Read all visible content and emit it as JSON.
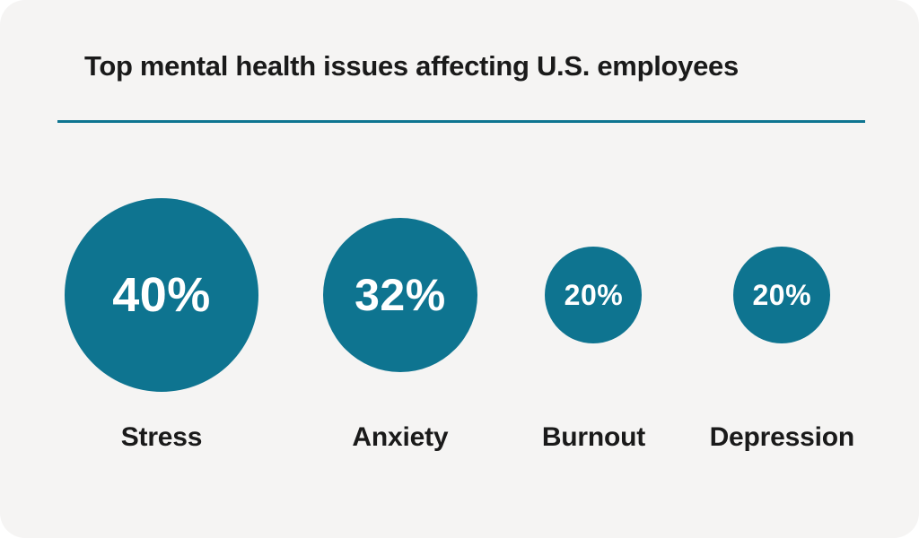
{
  "title": "Top mental health issues affecting U.S. employees",
  "colors": {
    "accent_teal": "#0e7490",
    "card_background": "#f5f4f3",
    "title_text": "#1a1a1a",
    "bubble_value_text": "#ffffff"
  },
  "chart_data": {
    "type": "bubble",
    "title": "Top mental health issues affecting U.S. employees",
    "categories": [
      "Stress",
      "Anxiety",
      "Burnout",
      "Depression"
    ],
    "values": [
      40,
      32,
      20,
      20
    ],
    "unit": "%",
    "value_labels": [
      "40%",
      "32%",
      "20%",
      "20%"
    ],
    "legend": false,
    "layout_hint": "circle diameter proportional to value; percentage shown inside each circle, category label below"
  }
}
